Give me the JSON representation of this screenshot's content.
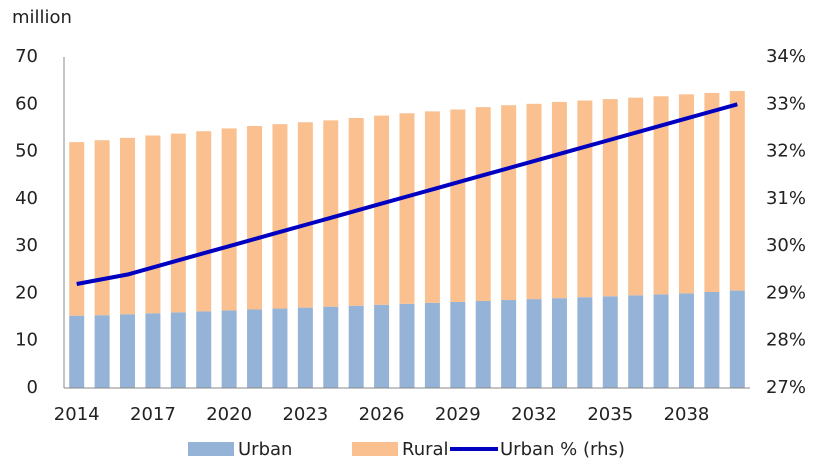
{
  "chart_data": {
    "type": "bar_line",
    "y_axis_label": "million",
    "categories": [
      "2014",
      null,
      null,
      "2017",
      null,
      null,
      "2020",
      null,
      null,
      "2023",
      null,
      null,
      "2026",
      null,
      null,
      "2029",
      null,
      null,
      "2032",
      null,
      null,
      "2035",
      null,
      null,
      "2038",
      null,
      null
    ],
    "series": [
      {
        "name": "Urban",
        "color": "#95b3d7",
        "stack": true,
        "values": [
          15.3,
          15.4,
          15.6,
          15.8,
          16.0,
          16.2,
          16.4,
          16.6,
          16.8,
          17.0,
          17.2,
          17.4,
          17.6,
          17.8,
          18.0,
          18.2,
          18.4,
          18.6,
          18.8,
          19.0,
          19.2,
          19.4,
          19.6,
          19.8,
          20.0,
          20.3,
          20.6
        ]
      },
      {
        "name": "Rural",
        "color": "#fac090",
        "stack": true,
        "values": [
          36.7,
          37.0,
          37.3,
          37.6,
          37.8,
          38.1,
          38.5,
          38.8,
          39.0,
          39.2,
          39.4,
          39.7,
          40.0,
          40.3,
          40.5,
          40.7,
          41.0,
          41.2,
          41.3,
          41.5,
          41.6,
          41.7,
          41.8,
          41.9,
          42.1,
          42.1,
          42.2
        ]
      },
      {
        "name": "Urban % (rhs)",
        "color": "#0000c0",
        "axis": "y2",
        "type": "line",
        "values": [
          29.2,
          29.3,
          29.4,
          29.55,
          29.7,
          29.85,
          30.0,
          30.15,
          30.3,
          30.45,
          30.6,
          30.75,
          30.9,
          31.05,
          31.2,
          31.35,
          31.5,
          31.65,
          31.8,
          31.95,
          32.1,
          32.25,
          32.4,
          32.55,
          32.7,
          32.85,
          33.0
        ]
      }
    ],
    "ylim": [
      0,
      70
    ],
    "yticks": [
      0,
      10,
      20,
      30,
      40,
      50,
      60,
      70
    ],
    "y2lim": [
      27,
      34
    ],
    "y2ticks": [
      {
        "value": 27,
        "label": "27%"
      },
      {
        "value": 28,
        "label": "28%"
      },
      {
        "value": 29,
        "label": "29%"
      },
      {
        "value": 30,
        "label": "30%"
      },
      {
        "value": 31,
        "label": "31%"
      },
      {
        "value": 32,
        "label": "32%"
      },
      {
        "value": 33,
        "label": "33%"
      },
      {
        "value": 34,
        "label": "34%"
      }
    ],
    "legend": "bottom",
    "grid": false
  }
}
